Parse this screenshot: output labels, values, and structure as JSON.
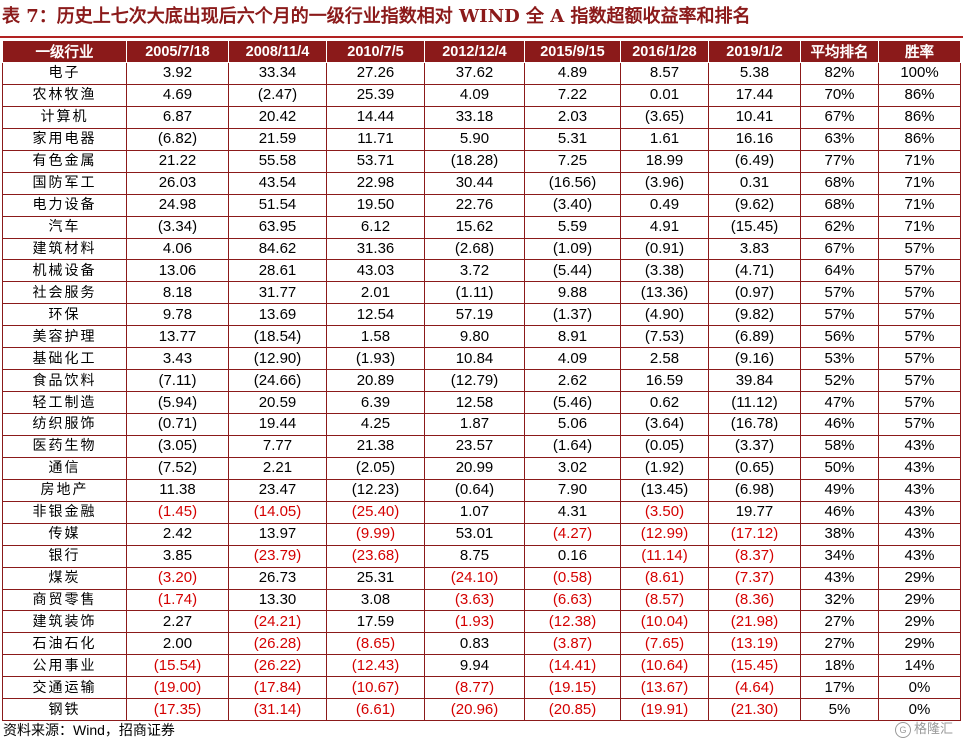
{
  "title": "表 7：历史上七次大底出现后六个月的一级行业指数相对 WIND 全 A 指数超额收益率和排名",
  "headers": [
    "一级行业",
    "2005/7/18",
    "2008/11/4",
    "2010/7/5",
    "2012/12/4",
    "2015/9/15",
    "2016/1/28",
    "2019/1/2",
    "平均排名",
    "胜率"
  ],
  "rows": [
    [
      "电子",
      "3.92",
      "33.34",
      "27.26",
      "37.62",
      "4.89",
      "8.57",
      "5.38",
      "82%",
      "100%"
    ],
    [
      "农林牧渔",
      "4.69",
      "(2.47)",
      "25.39",
      "4.09",
      "7.22",
      "0.01",
      "17.44",
      "70%",
      "86%"
    ],
    [
      "计算机",
      "6.87",
      "20.42",
      "14.44",
      "33.18",
      "2.03",
      "(3.65)",
      "10.41",
      "67%",
      "86%"
    ],
    [
      "家用电器",
      "(6.82)",
      "21.59",
      "11.71",
      "5.90",
      "5.31",
      "1.61",
      "16.16",
      "63%",
      "86%"
    ],
    [
      "有色金属",
      "21.22",
      "55.58",
      "53.71",
      "(18.28)",
      "7.25",
      "18.99",
      "(6.49)",
      "77%",
      "71%"
    ],
    [
      "国防军工",
      "26.03",
      "43.54",
      "22.98",
      "30.44",
      "(16.56)",
      "(3.96)",
      "0.31",
      "68%",
      "71%"
    ],
    [
      "电力设备",
      "24.98",
      "51.54",
      "19.50",
      "22.76",
      "(3.40)",
      "0.49",
      "(9.62)",
      "68%",
      "71%"
    ],
    [
      "汽车",
      "(3.34)",
      "63.95",
      "6.12",
      "15.62",
      "5.59",
      "4.91",
      "(15.45)",
      "62%",
      "71%"
    ],
    [
      "建筑材料",
      "4.06",
      "84.62",
      "31.36",
      "(2.68)",
      "(1.09)",
      "(0.91)",
      "3.83",
      "67%",
      "57%"
    ],
    [
      "机械设备",
      "13.06",
      "28.61",
      "43.03",
      "3.72",
      "(5.44)",
      "(3.38)",
      "(4.71)",
      "64%",
      "57%"
    ],
    [
      "社会服务",
      "8.18",
      "31.77",
      "2.01",
      "(1.11)",
      "9.88",
      "(13.36)",
      "(0.97)",
      "57%",
      "57%"
    ],
    [
      "环保",
      "9.78",
      "13.69",
      "12.54",
      "57.19",
      "(1.37)",
      "(4.90)",
      "(9.82)",
      "57%",
      "57%"
    ],
    [
      "美容护理",
      "13.77",
      "(18.54)",
      "1.58",
      "9.80",
      "8.91",
      "(7.53)",
      "(6.89)",
      "56%",
      "57%"
    ],
    [
      "基础化工",
      "3.43",
      "(12.90)",
      "(1.93)",
      "10.84",
      "4.09",
      "2.58",
      "(9.16)",
      "53%",
      "57%"
    ],
    [
      "食品饮料",
      "(7.11)",
      "(24.66)",
      "20.89",
      "(12.79)",
      "2.62",
      "16.59",
      "39.84",
      "52%",
      "57%"
    ],
    [
      "轻工制造",
      "(5.94)",
      "20.59",
      "6.39",
      "12.58",
      "(5.46)",
      "0.62",
      "(11.12)",
      "47%",
      "57%"
    ],
    [
      "纺织服饰",
      "(0.71)",
      "19.44",
      "4.25",
      "1.87",
      "5.06",
      "(3.64)",
      "(16.78)",
      "46%",
      "57%"
    ],
    [
      "医药生物",
      "(3.05)",
      "7.77",
      "21.38",
      "23.57",
      "(1.64)",
      "(0.05)",
      "(3.37)",
      "58%",
      "43%"
    ],
    [
      "通信",
      "(7.52)",
      "2.21",
      "(2.05)",
      "20.99",
      "3.02",
      "(1.92)",
      "(0.65)",
      "50%",
      "43%"
    ],
    [
      "房地产",
      "11.38",
      "23.47",
      "(12.23)",
      "(0.64)",
      "7.90",
      "(13.45)",
      "(6.98)",
      "49%",
      "43%"
    ],
    [
      "非银金融",
      "(1.45)",
      "(14.05)",
      "(25.40)",
      "1.07",
      "4.31",
      "(3.50)",
      "19.77",
      "46%",
      "43%"
    ],
    [
      "传媒",
      "2.42",
      "13.97",
      "(9.99)",
      "53.01",
      "(4.27)",
      "(12.99)",
      "(17.12)",
      "38%",
      "43%"
    ],
    [
      "银行",
      "3.85",
      "(23.79)",
      "(23.68)",
      "8.75",
      "0.16",
      "(11.14)",
      "(8.37)",
      "34%",
      "43%"
    ],
    [
      "煤炭",
      "(3.20)",
      "26.73",
      "25.31",
      "(24.10)",
      "(0.58)",
      "(8.61)",
      "(7.37)",
      "43%",
      "29%"
    ],
    [
      "商贸零售",
      "(1.74)",
      "13.30",
      "3.08",
      "(3.63)",
      "(6.63)",
      "(8.57)",
      "(8.36)",
      "32%",
      "29%"
    ],
    [
      "建筑装饰",
      "2.27",
      "(24.21)",
      "17.59",
      "(1.93)",
      "(12.38)",
      "(10.04)",
      "(21.98)",
      "27%",
      "29%"
    ],
    [
      "石油石化",
      "2.00",
      "(26.28)",
      "(8.65)",
      "0.83",
      "(3.87)",
      "(7.65)",
      "(13.19)",
      "27%",
      "29%"
    ],
    [
      "公用事业",
      "(15.54)",
      "(26.22)",
      "(12.43)",
      "9.94",
      "(14.41)",
      "(10.64)",
      "(15.45)",
      "18%",
      "14%"
    ],
    [
      "交通运输",
      "(19.00)",
      "(17.84)",
      "(10.67)",
      "(8.77)",
      "(19.15)",
      "(13.67)",
      "(4.64)",
      "17%",
      "0%"
    ],
    [
      "钢铁",
      "(17.35)",
      "(31.14)",
      "(6.61)",
      "(20.96)",
      "(20.85)",
      "(19.91)",
      "(21.30)",
      "5%",
      "0%"
    ]
  ],
  "red_from_row": 20,
  "footer": "资料来源：Wind，招商证券",
  "watermark": "格隆汇",
  "colors": {
    "header_bg": "#8b1a1a",
    "negative_red": "#d40000",
    "title": "#8b1a1a"
  }
}
